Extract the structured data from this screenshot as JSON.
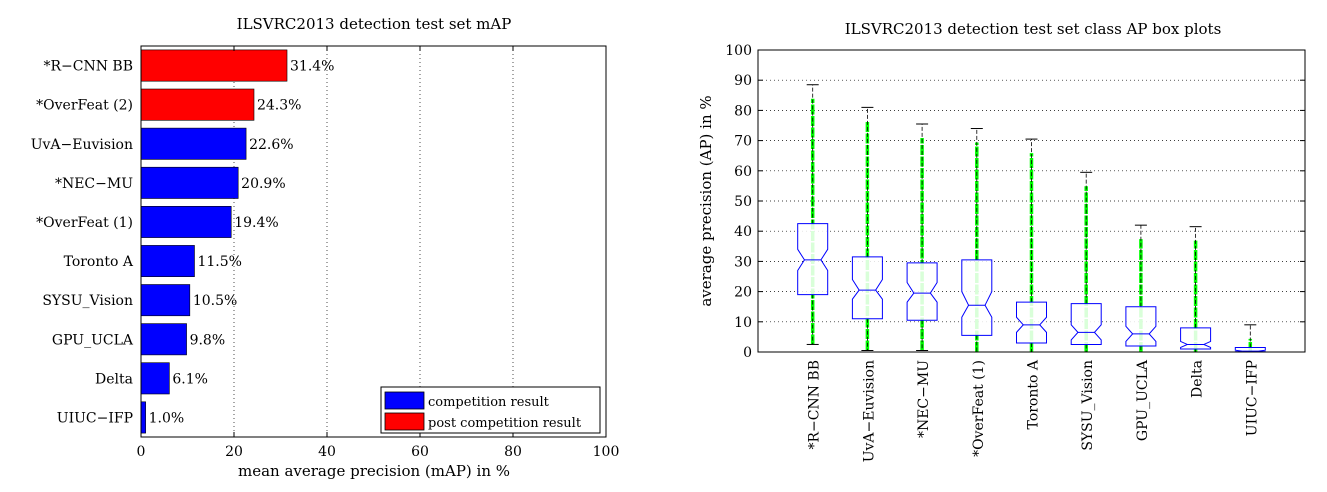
{
  "chart_data": [
    {
      "type": "bar",
      "orientation": "horizontal",
      "title": "ILSVRC2013 detection test set mAP",
      "xlabel": "mean average precision (mAP) in %",
      "ylabel": "",
      "xlim": [
        0,
        100
      ],
      "xticks": [
        "0",
        "20",
        "40",
        "60",
        "80",
        "100"
      ],
      "grid": "vertical dotted",
      "legend_position": "bottom-right",
      "categories": [
        "*R−CNN BB",
        "*OverFeat (2)",
        "UvA−Euvision",
        "*NEC−MU",
        "*OverFeat (1)",
        "Toronto A",
        "SYSU_Vision",
        "GPU_UCLA",
        "Delta",
        "UIUC−IFP"
      ],
      "values": [
        31.4,
        24.3,
        22.6,
        20.9,
        19.4,
        11.5,
        10.5,
        9.8,
        6.1,
        1.0
      ],
      "value_labels": [
        "31.4%",
        "24.3%",
        "22.6%",
        "20.9%",
        "19.4%",
        "11.5%",
        "10.5%",
        "9.8%",
        "6.1%",
        "1.0%"
      ],
      "groups": [
        "post",
        "post",
        "competition",
        "competition",
        "competition",
        "competition",
        "competition",
        "competition",
        "competition",
        "competition"
      ],
      "legend": [
        {
          "key": "competition",
          "label": "competition result",
          "color": "#0000ff"
        },
        {
          "key": "post",
          "label": "post competition result",
          "color": "#ff0000"
        }
      ]
    },
    {
      "type": "box",
      "title": "ILSVRC2013 detection test set class AP box plots",
      "xlabel": "",
      "ylabel": "average precision (AP) in %",
      "ylim": [
        0,
        100
      ],
      "yticks": [
        "0",
        "10",
        "20",
        "30",
        "40",
        "50",
        "60",
        "70",
        "80",
        "90",
        "100"
      ],
      "grid": "horizontal dotted",
      "categories": [
        "*R−CNN BB",
        "UvA−Euvision",
        "*NEC−MU",
        "*OverFeat (1)",
        "Toronto A",
        "SYSU_Vision",
        "GPU_UCLA",
        "Delta",
        "UIUC−IFP"
      ],
      "boxes": [
        {
          "min": 2.5,
          "q1": 19,
          "median": 30.5,
          "q3": 42.5,
          "max": 88.5,
          "notch": [
            27,
            34
          ]
        },
        {
          "min": 0.5,
          "q1": 11,
          "median": 20.5,
          "q3": 31.5,
          "max": 81,
          "notch": [
            17.5,
            24
          ]
        },
        {
          "min": 0.5,
          "q1": 10.5,
          "median": 19.5,
          "q3": 29.5,
          "max": 75.5,
          "notch": [
            16.5,
            23
          ]
        },
        {
          "min": 0,
          "q1": 5.5,
          "median": 15.5,
          "q3": 30.5,
          "max": 74,
          "notch": [
            11.5,
            20
          ]
        },
        {
          "min": 0,
          "q1": 3,
          "median": 9,
          "q3": 16.5,
          "max": 70.5,
          "notch": [
            6.5,
            11.5
          ]
        },
        {
          "min": 0,
          "q1": 2.5,
          "median": 6.5,
          "q3": 16,
          "max": 59.5,
          "notch": [
            4,
            9
          ]
        },
        {
          "min": 0,
          "q1": 2,
          "median": 6,
          "q3": 15,
          "max": 42,
          "notch": [
            3.5,
            8.5
          ]
        },
        {
          "min": 0,
          "q1": 1,
          "median": 2.5,
          "q3": 8,
          "max": 41.5,
          "notch": [
            1.5,
            3.5
          ]
        },
        {
          "min": 0,
          "q1": 0,
          "median": 0.3,
          "q3": 1.5,
          "max": 9,
          "notch": [
            0.1,
            0.6
          ]
        }
      ],
      "outlier_color": "#00ff00",
      "box_color": "#0000ff",
      "whisker_color": "#000000"
    }
  ]
}
